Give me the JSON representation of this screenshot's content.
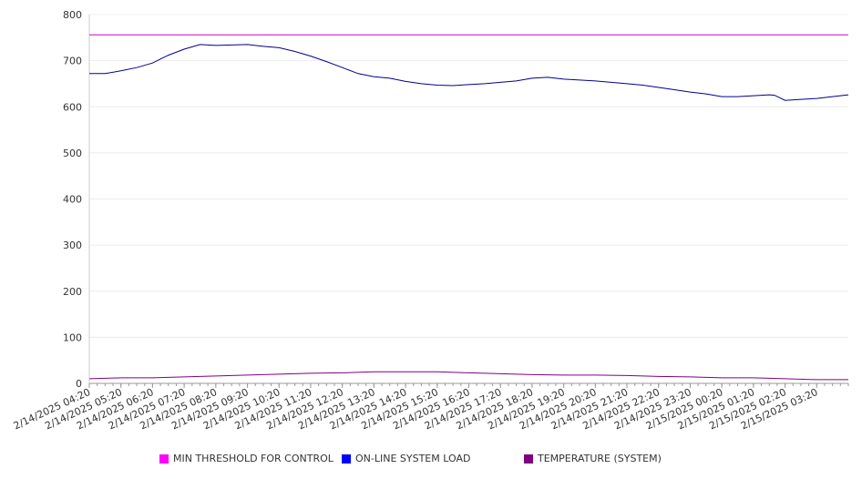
{
  "chart_data": {
    "type": "line",
    "ylim": [
      0,
      800
    ],
    "yticks": [
      0,
      100,
      200,
      300,
      400,
      500,
      600,
      700,
      800
    ],
    "xlim": [
      "2/14/2025 04:20",
      "2/15/2025 04:20"
    ],
    "xtick_labels": [
      "2/14/2025 04:20",
      "2/14/2025 05:20",
      "2/14/2025 06:20",
      "2/14/2025 07:20",
      "2/14/2025 08:20",
      "2/14/2025 09:20",
      "2/14/2025 10:20",
      "2/14/2025 11:20",
      "2/14/2025 12:20",
      "2/14/2025 13:20",
      "2/14/2025 14:20",
      "2/14/2025 15:20",
      "2/14/2025 16:20",
      "2/14/2025 17:20",
      "2/14/2025 18:20",
      "2/14/2025 19:20",
      "2/14/2025 20:20",
      "2/14/2025 21:20",
      "2/14/2025 22:20",
      "2/14/2025 23:20",
      "2/15/2025 00:20",
      "2/15/2025 01:20",
      "2/15/2025 02:20",
      "2/15/2025 03:20"
    ],
    "grid": "horizontal",
    "legend_position": "bottom",
    "series": [
      {
        "name": "MIN THRESHOLD FOR CONTROL",
        "color": "#cc00cc",
        "legend_color": "#ff00ff",
        "x": [
          "2/14/2025 04:20",
          "2/15/2025 04:20"
        ],
        "values": [
          756,
          756
        ]
      },
      {
        "name": "ON-LINE SYSTEM LOAD",
        "color": "#00008b",
        "legend_color": "#0000ff",
        "x": [
          "2/14/2025 04:20",
          "2/14/2025 04:50",
          "2/14/2025 05:20",
          "2/14/2025 05:50",
          "2/14/2025 06:20",
          "2/14/2025 06:50",
          "2/14/2025 07:20",
          "2/14/2025 07:50",
          "2/14/2025 08:20",
          "2/14/2025 08:50",
          "2/14/2025 09:20",
          "2/14/2025 09:50",
          "2/14/2025 10:20",
          "2/14/2025 10:50",
          "2/14/2025 11:20",
          "2/14/2025 11:50",
          "2/14/2025 12:20",
          "2/14/2025 12:50",
          "2/14/2025 13:20",
          "2/14/2025 13:50",
          "2/14/2025 14:20",
          "2/14/2025 14:50",
          "2/14/2025 15:20",
          "2/14/2025 15:50",
          "2/14/2025 16:20",
          "2/14/2025 16:50",
          "2/14/2025 17:20",
          "2/14/2025 17:50",
          "2/14/2025 18:20",
          "2/14/2025 18:50",
          "2/14/2025 19:20",
          "2/14/2025 19:50",
          "2/14/2025 20:20",
          "2/14/2025 20:50",
          "2/14/2025 21:20",
          "2/14/2025 21:50",
          "2/14/2025 22:20",
          "2/14/2025 22:50",
          "2/14/2025 23:20",
          "2/14/2025 23:50",
          "2/15/2025 00:20",
          "2/15/2025 00:50",
          "2/15/2025 01:20",
          "2/15/2025 01:50",
          "2/15/2025 02:00",
          "2/15/2025 02:20",
          "2/15/2025 02:50",
          "2/15/2025 03:20",
          "2/15/2025 03:50",
          "2/15/2025 04:20"
        ],
        "values": [
          672,
          672,
          678,
          685,
          695,
          712,
          725,
          735,
          733,
          734,
          735,
          731,
          728,
          720,
          710,
          698,
          685,
          672,
          665,
          662,
          655,
          650,
          647,
          646,
          648,
          650,
          653,
          656,
          662,
          664,
          660,
          658,
          656,
          653,
          650,
          647,
          642,
          637,
          632,
          628,
          622,
          622,
          624,
          626,
          625,
          614,
          616,
          618,
          622,
          626
        ]
      },
      {
        "name": "TEMPERATURE (SYSTEM)",
        "color": "#800080",
        "legend_color": "#800080",
        "x": [
          "2/14/2025 04:20",
          "2/14/2025 05:20",
          "2/14/2025 06:20",
          "2/14/2025 07:20",
          "2/14/2025 08:20",
          "2/14/2025 09:20",
          "2/14/2025 10:20",
          "2/14/2025 11:20",
          "2/14/2025 12:20",
          "2/14/2025 13:20",
          "2/14/2025 14:20",
          "2/14/2025 15:20",
          "2/14/2025 16:20",
          "2/14/2025 17:20",
          "2/14/2025 18:20",
          "2/14/2025 19:20",
          "2/14/2025 20:20",
          "2/14/2025 21:20",
          "2/14/2025 22:20",
          "2/14/2025 23:20",
          "2/15/2025 00:20",
          "2/15/2025 01:20",
          "2/15/2025 02:20",
          "2/15/2025 03:20",
          "2/15/2025 04:20"
        ],
        "values": [
          10,
          12,
          12,
          14,
          16,
          18,
          20,
          22,
          23,
          25,
          25,
          25,
          23,
          21,
          19,
          18,
          18,
          17,
          15,
          14,
          12,
          12,
          10,
          8,
          8
        ]
      }
    ]
  }
}
